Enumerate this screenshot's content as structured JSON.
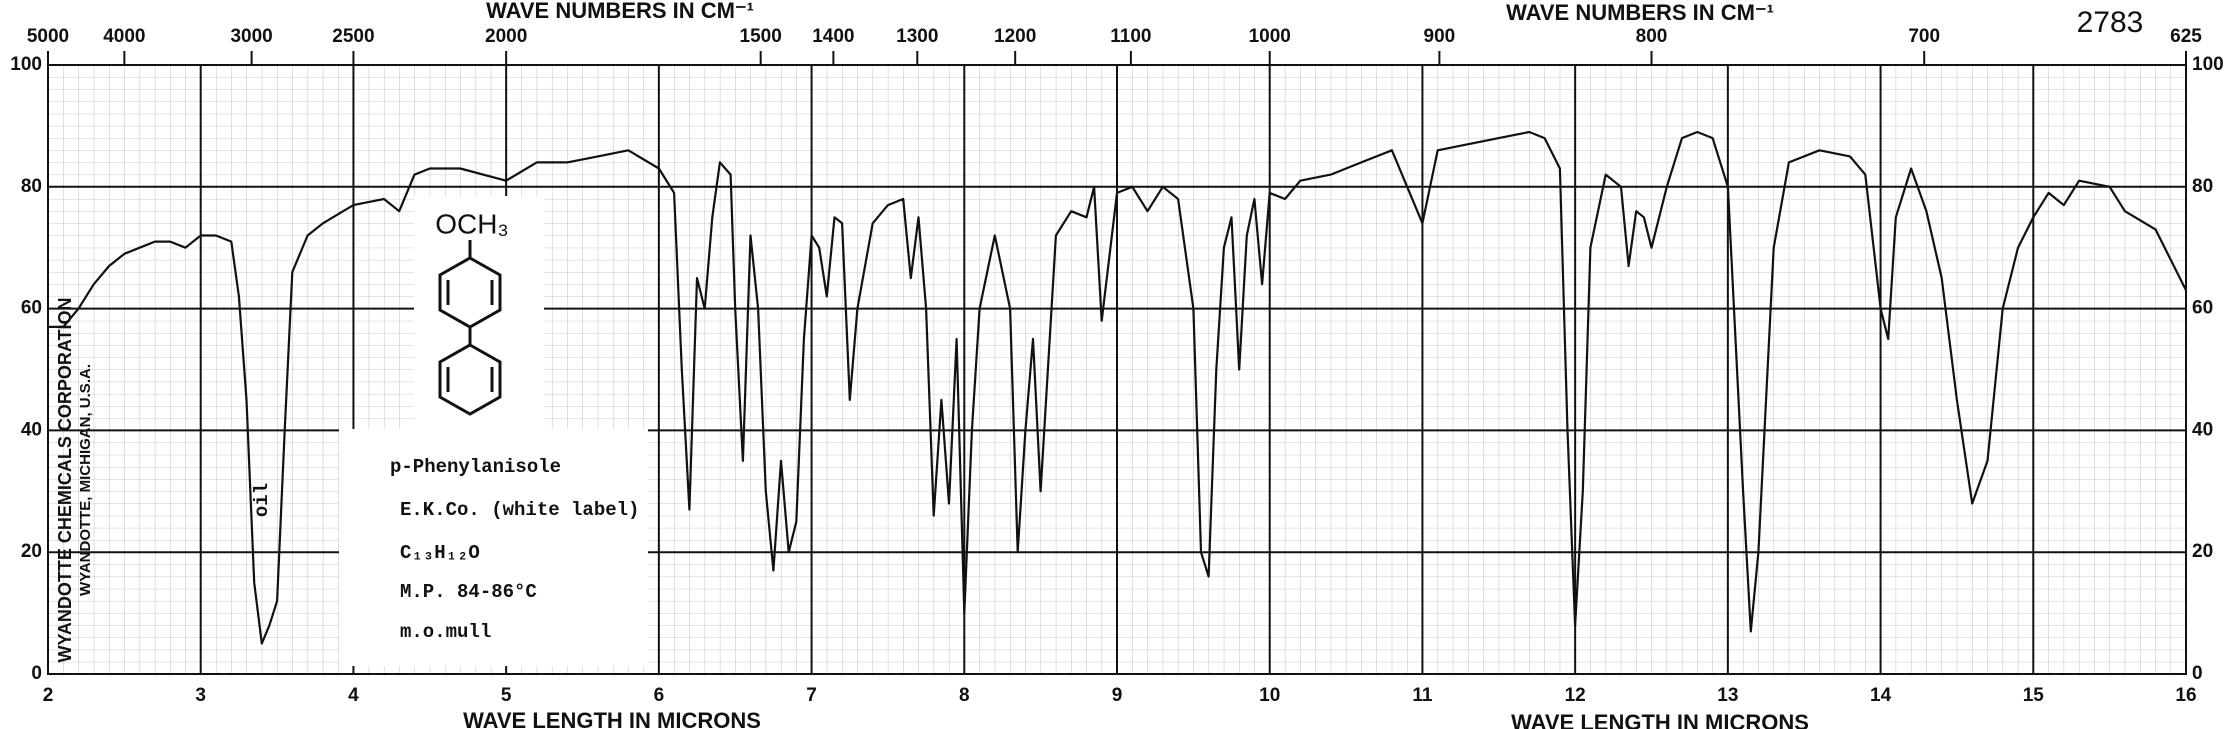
{
  "chart_data": {
    "type": "line",
    "catalog_number": "2783",
    "xlabel": "WAVE LENGTH IN MICRONS",
    "x2label": "WAVE NUMBERS IN CM⁻¹",
    "xlim": [
      2,
      16
    ],
    "xticks": [
      2,
      3,
      4,
      5,
      6,
      7,
      8,
      9,
      10,
      11,
      12,
      13,
      14,
      15,
      16
    ],
    "x2ticks": [
      5000,
      4000,
      3000,
      2500,
      2000,
      1500,
      1400,
      1300,
      1200,
      1100,
      1000,
      900,
      800,
      700,
      625
    ],
    "ylim": [
      0,
      100
    ],
    "yticks": [
      0,
      20,
      40,
      60,
      80,
      100
    ],
    "grid": true,
    "color": "#111111",
    "structure_label": "OCH₃",
    "band_label": "oil",
    "side_text": [
      "WYANDOTTE CHEMICALS CORPORATION",
      "WYANDOTTE, MICHIGAN, U.S.A."
    ],
    "annotations": [
      "p-Phenylanisole",
      "E.K.Co. (white label)",
      "C₁₃H₁₂O",
      "M.P. 84-86°C",
      "m.o.mull"
    ],
    "x": [
      2.0,
      2.1,
      2.2,
      2.3,
      2.4,
      2.5,
      2.6,
      2.7,
      2.8,
      2.9,
      3.0,
      3.1,
      3.2,
      3.25,
      3.3,
      3.35,
      3.4,
      3.45,
      3.5,
      3.55,
      3.6,
      3.7,
      3.8,
      4.0,
      4.2,
      4.3,
      4.4,
      4.5,
      4.7,
      5.0,
      5.2,
      5.4,
      5.6,
      5.8,
      6.0,
      6.1,
      6.15,
      6.2,
      6.25,
      6.3,
      6.35,
      6.4,
      6.47,
      6.5,
      6.55,
      6.6,
      6.65,
      6.7,
      6.75,
      6.8,
      6.85,
      6.9,
      6.95,
      7.0,
      7.05,
      7.1,
      7.15,
      7.2,
      7.25,
      7.3,
      7.4,
      7.5,
      7.6,
      7.65,
      7.7,
      7.75,
      7.8,
      7.85,
      7.9,
      7.95,
      8.0,
      8.05,
      8.1,
      8.2,
      8.3,
      8.35,
      8.4,
      8.45,
      8.5,
      8.6,
      8.7,
      8.8,
      8.85,
      8.9,
      9.0,
      9.1,
      9.2,
      9.3,
      9.4,
      9.5,
      9.55,
      9.6,
      9.65,
      9.7,
      9.75,
      9.8,
      9.85,
      9.9,
      9.95,
      10.0,
      10.1,
      10.2,
      10.4,
      10.6,
      10.8,
      11.0,
      11.1,
      11.3,
      11.5,
      11.7,
      11.8,
      11.9,
      11.95,
      12.0,
      12.05,
      12.1,
      12.2,
      12.3,
      12.35,
      12.4,
      12.45,
      12.5,
      12.6,
      12.7,
      12.8,
      12.9,
      13.0,
      13.1,
      13.15,
      13.2,
      13.3,
      13.4,
      13.6,
      13.8,
      13.9,
      14.0,
      14.05,
      14.1,
      14.2,
      14.3,
      14.4,
      14.5,
      14.6,
      14.7,
      14.8,
      14.9,
      15.0,
      15.1,
      15.2,
      15.3,
      15.5,
      15.6,
      15.8,
      16.0
    ],
    "values": [
      57,
      57,
      60,
      64,
      67,
      69,
      70,
      71,
      71,
      70,
      72,
      72,
      71,
      62,
      45,
      15,
      5,
      8,
      12,
      40,
      66,
      72,
      74,
      77,
      78,
      76,
      82,
      83,
      83,
      81,
      84,
      84,
      85,
      86,
      83,
      79,
      50,
      27,
      65,
      60,
      75,
      84,
      82,
      60,
      35,
      72,
      60,
      30,
      17,
      35,
      20,
      25,
      55,
      72,
      70,
      62,
      75,
      74,
      45,
      60,
      74,
      77,
      78,
      65,
      75,
      60,
      26,
      45,
      28,
      55,
      10,
      40,
      60,
      72,
      60,
      20,
      40,
      55,
      30,
      72,
      76,
      75,
      80,
      58,
      79,
      80,
      76,
      80,
      78,
      60,
      20,
      16,
      50,
      70,
      75,
      50,
      72,
      78,
      64,
      79,
      78,
      81,
      82,
      84,
      86,
      74,
      86,
      87,
      88,
      89,
      88,
      83,
      40,
      8,
      30,
      70,
      82,
      80,
      67,
      76,
      75,
      70,
      80,
      88,
      89,
      88,
      80,
      30,
      7,
      20,
      70,
      84,
      86,
      85,
      82,
      60,
      55,
      75,
      83,
      76,
      65,
      45,
      28,
      35,
      60,
      70,
      75,
      79,
      77,
      81,
      80,
      76,
      73,
      63
    ]
  }
}
